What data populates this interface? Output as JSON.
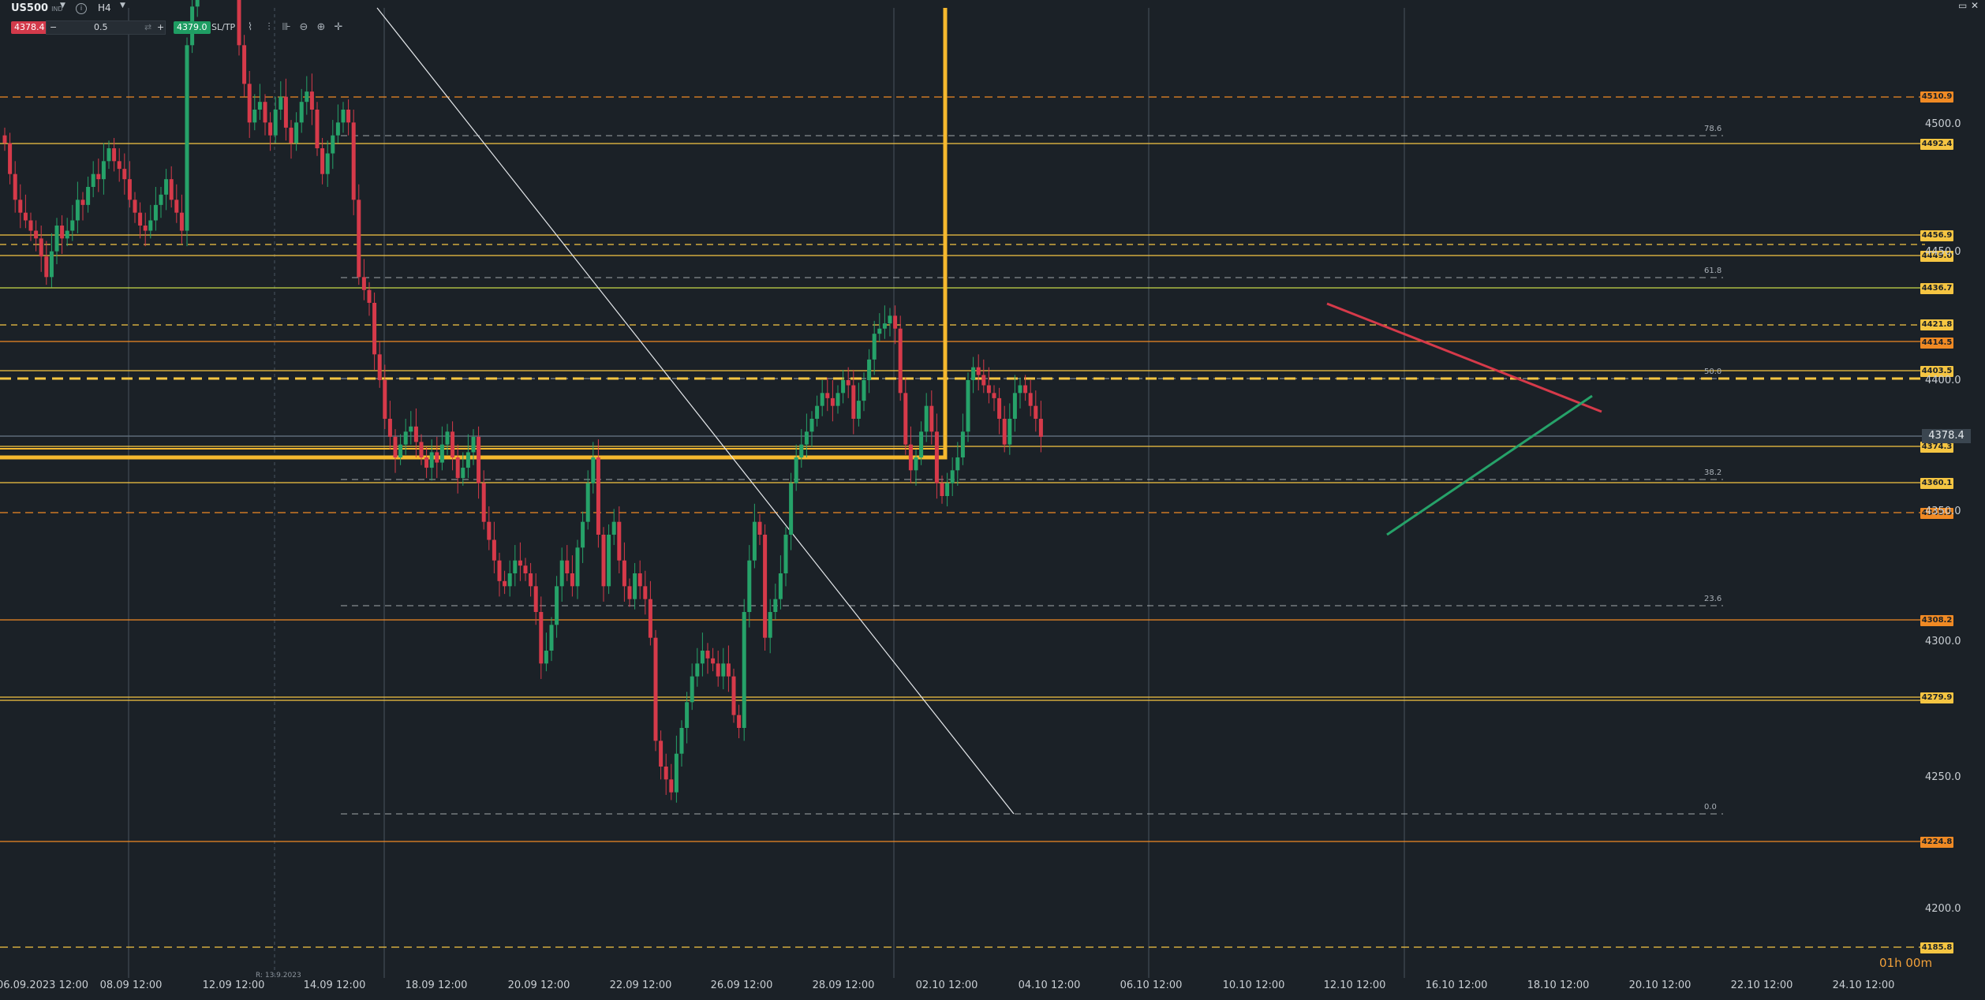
{
  "toolbar": {
    "symbol": "US500",
    "symbol_sub": "IND",
    "timeframe": "H4",
    "sell_price": "4378.4",
    "quantity": "0.5",
    "buy_price": "4379.0",
    "sltp_label": "SL/TP",
    "minus": "−",
    "plus": "+"
  },
  "window": {
    "restore": "▭",
    "close": "✕"
  },
  "current_price": "4378.4",
  "countdown": "01h 00m",
  "range_label": "R: 13.9.2023",
  "y_ticks": [
    "4500.0",
    "4450.0",
    "4400.0",
    "4350.0",
    "4300.0",
    "4250.0",
    "4200.0"
  ],
  "x_ticks": [
    "06.09.2023 12:00",
    "08.09 12:00",
    "12.09 12:00",
    "14.09 12:00",
    "18.09 12:00",
    "20.09 12:00",
    "22.09 12:00",
    "26.09 12:00",
    "28.09 12:00",
    "02.10 12:00",
    "04.10 12:00",
    "06.10 12:00",
    "10.10 12:00",
    "12.10 12:00",
    "16.10 12:00",
    "18.10 12:00",
    "20.10 12:00",
    "22.10 12:00",
    "24.10 12:00"
  ],
  "fib_levels": [
    "78.6",
    "61.8",
    "50.0",
    "38.2",
    "23.6",
    "0.0"
  ],
  "level_tags": [
    {
      "text": "4510.9",
      "color": "#f08a24"
    },
    {
      "text": "4492.4",
      "color": "#f5c542"
    },
    {
      "text": "4456.9",
      "color": "#f5c542"
    },
    {
      "text": "4449.0",
      "color": "#f5c542"
    },
    {
      "text": "4436.7",
      "color": "#f5c542"
    },
    {
      "text": "4421.8",
      "color": "#f5c542"
    },
    {
      "text": "4414.5",
      "color": "#f08a24"
    },
    {
      "text": "4403.5",
      "color": "#f5c542"
    },
    {
      "text": "4374.3",
      "color": "#f5c542"
    },
    {
      "text": "4360.1",
      "color": "#f5c542"
    },
    {
      "text": "4348.5",
      "color": "#f08a24"
    },
    {
      "text": "4308.2",
      "color": "#f08a24"
    },
    {
      "text": "4279.9",
      "color": "#f5c542"
    },
    {
      "text": "4224.8",
      "color": "#f08a24"
    },
    {
      "text": "4185.8",
      "color": "#f5c542"
    }
  ],
  "colors": {
    "background": "#1b2127",
    "up": "#26a269",
    "down": "#d63a4a",
    "yellow": "#f5c542",
    "orange": "#f08a24"
  }
}
